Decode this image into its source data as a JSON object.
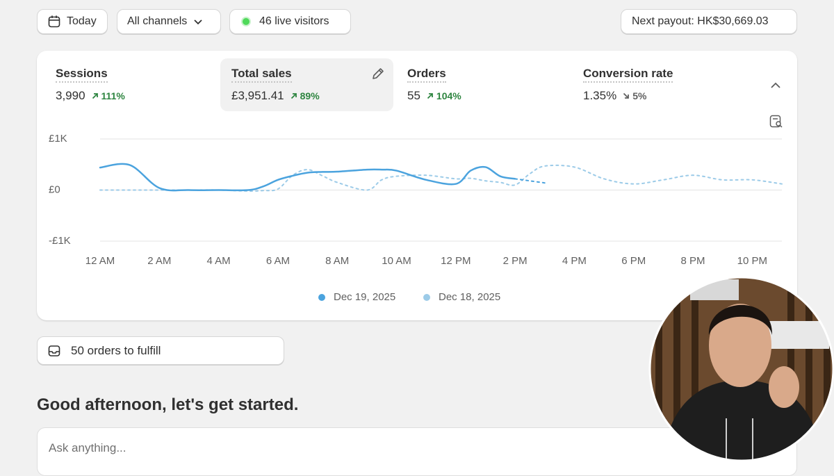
{
  "toolbar": {
    "date": "Today",
    "channels": "All channels",
    "visitors": "46 live visitors",
    "payout": "Next payout: HK$30,669.03"
  },
  "metrics": [
    {
      "label": "Sessions",
      "value": "3,990",
      "change": "111%",
      "direction": "up"
    },
    {
      "label": "Total sales",
      "value": "£3,951.41",
      "change": "89%",
      "direction": "up",
      "selected": true
    },
    {
      "label": "Orders",
      "value": "55",
      "change": "104%",
      "direction": "up"
    },
    {
      "label": "Conversion rate",
      "value": "1.35%",
      "change": "5%",
      "direction": "down"
    }
  ],
  "chart_data": {
    "type": "line",
    "x": [
      0,
      1,
      2,
      3,
      4,
      5,
      5.5,
      6,
      6.5,
      7,
      7.5,
      8,
      9,
      9.5,
      10,
      11,
      12,
      12.5,
      13,
      13.5,
      14,
      14.5,
      15,
      16,
      17,
      18,
      19,
      20,
      21,
      22,
      23
    ],
    "series": [
      {
        "name": "Dec 19, 2025",
        "color": "#4ba3de",
        "dashed_from_x": 14,
        "values": [
          440,
          490,
          40,
          0,
          0,
          0,
          70,
          200,
          280,
          340,
          355,
          360,
          400,
          400,
          380,
          200,
          120,
          380,
          450,
          270,
          220,
          180,
          140,
          null,
          null,
          null,
          null,
          null,
          null,
          null,
          null
        ]
      },
      {
        "name": "Dec 18, 2025",
        "color": "#9ccbe8",
        "dashed": true,
        "values": [
          0,
          0,
          0,
          0,
          0,
          -20,
          -10,
          20,
          290,
          400,
          280,
          150,
          0,
          200,
          270,
          290,
          220,
          230,
          180,
          150,
          100,
          320,
          470,
          450,
          220,
          120,
          200,
          290,
          200,
          200,
          120
        ]
      }
    ],
    "xlim": [
      0,
      23
    ],
    "xticks": [
      {
        "value": 0,
        "label": "12 AM"
      },
      {
        "value": 2,
        "label": "2 AM"
      },
      {
        "value": 4,
        "label": "4 AM"
      },
      {
        "value": 6,
        "label": "6 AM"
      },
      {
        "value": 8,
        "label": "8 AM"
      },
      {
        "value": 10,
        "label": "10 AM"
      },
      {
        "value": 12,
        "label": "12 PM"
      },
      {
        "value": 14,
        "label": "2 PM"
      },
      {
        "value": 16,
        "label": "4 PM"
      },
      {
        "value": 18,
        "label": "6 PM"
      },
      {
        "value": 20,
        "label": "8 PM"
      },
      {
        "value": 22,
        "label": "10 PM"
      }
    ],
    "ylim": [
      -1000,
      1000
    ],
    "yticks": [
      {
        "value": 1000,
        "label": "£1K"
      },
      {
        "value": 0,
        "label": "£0"
      },
      {
        "value": -1000,
        "label": "-£1K"
      }
    ],
    "grid": true,
    "legend": "bottom"
  },
  "fulfill": "50 orders to fulfill",
  "greeting": "Good afternoon, let's get started.",
  "ask_placeholder": "Ask anything..."
}
